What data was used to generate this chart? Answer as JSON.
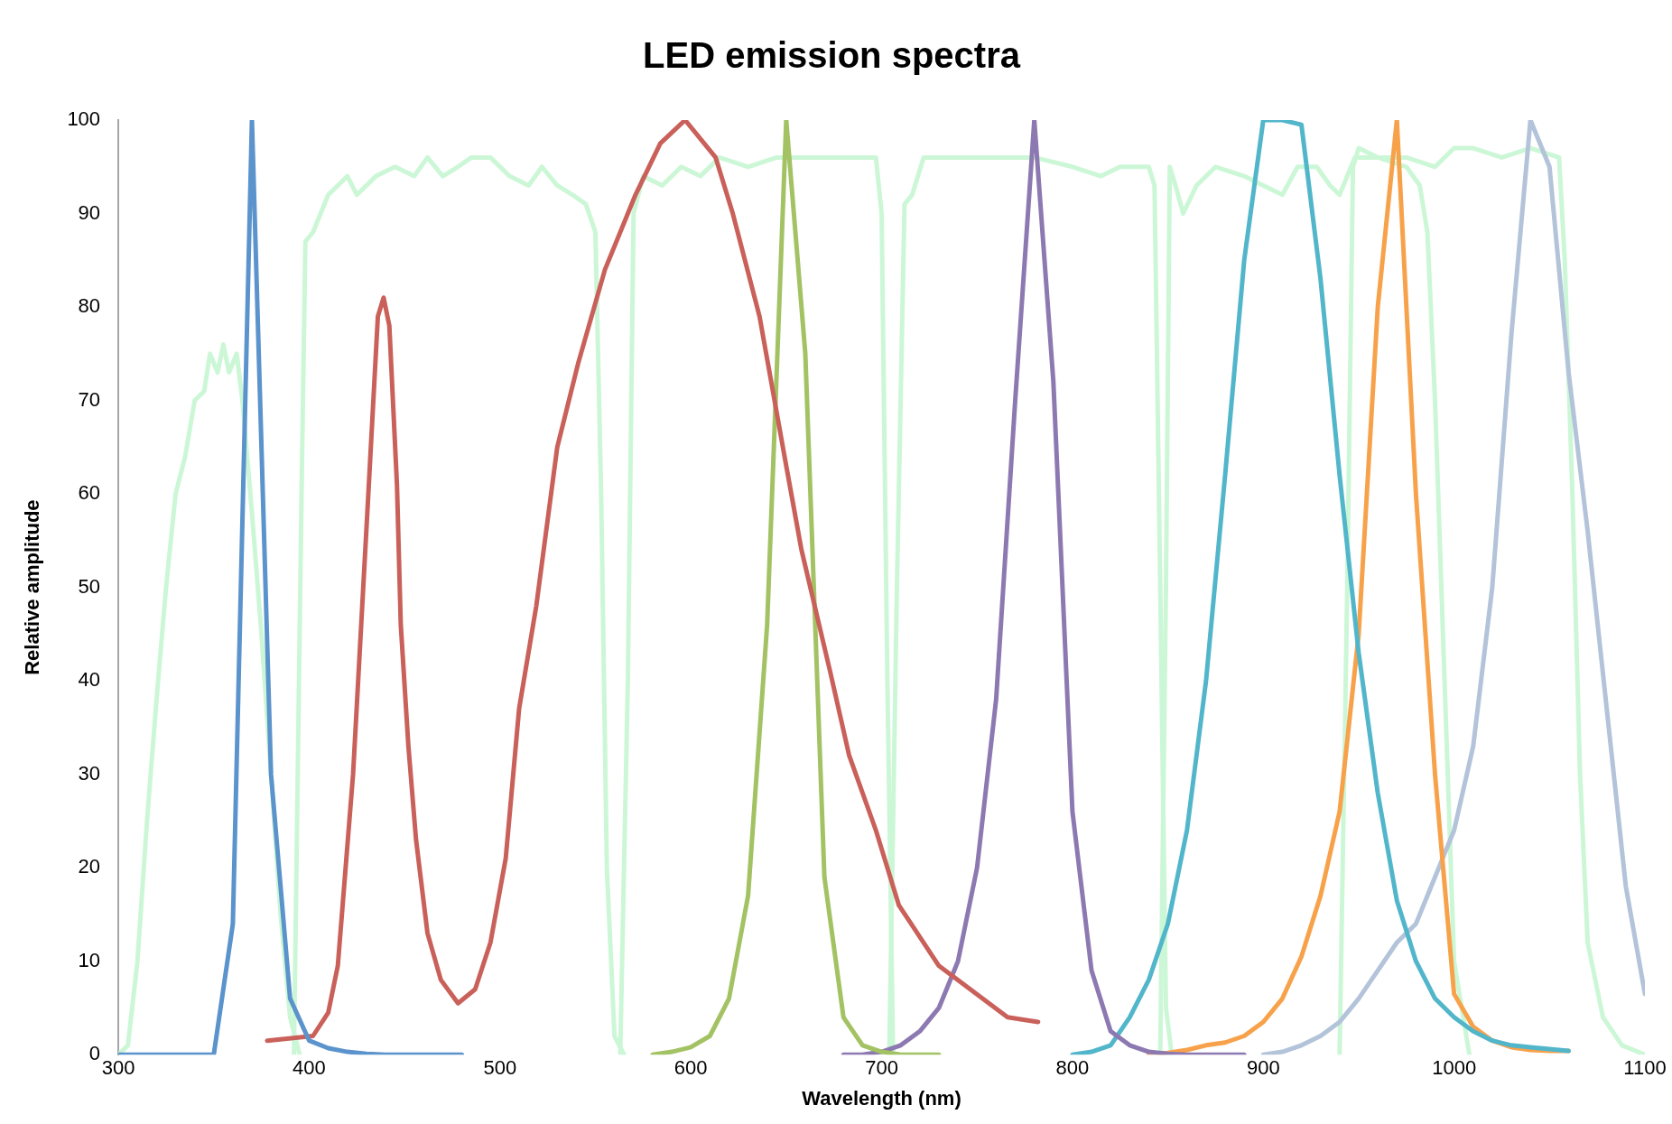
{
  "chart_data": {
    "type": "line",
    "title": "LED emission spectra",
    "xlabel": "Wavelength (nm)",
    "ylabel": "Relative amplitude",
    "xlim": [
      300,
      1100
    ],
    "xticks": [
      300,
      400,
      500,
      600,
      700,
      800,
      900,
      1000,
      1100
    ],
    "ylim": [
      0,
      100
    ],
    "yticks": [
      0,
      10,
      20,
      30,
      40,
      50,
      60,
      70,
      80,
      90,
      100
    ],
    "grid": false,
    "legend": false,
    "marker": "none",
    "line_style": "solid",
    "series": [
      {
        "color": "#5b93cc",
        "x": [
          300,
          310,
          320,
          330,
          340,
          350,
          360,
          370,
          380,
          390,
          400,
          410,
          420,
          430,
          440,
          450,
          460,
          470,
          480
        ],
        "values": [
          0,
          0,
          0,
          0,
          0,
          0,
          14,
          100,
          30,
          6,
          1.5,
          0.7,
          0.3,
          0.1,
          0,
          0,
          0,
          0,
          0
        ]
      },
      {
        "color": "#c9605a",
        "x": [
          378,
          402,
          410,
          415,
          423,
          431,
          436,
          439,
          442,
          446,
          448,
          452,
          456,
          462,
          469,
          478,
          487,
          495,
          503,
          510,
          519,
          530,
          541,
          555,
          571,
          584,
          597,
          613,
          622,
          636,
          650,
          658,
          673,
          683,
          697,
          709,
          730,
          766,
          782
        ],
        "values": [
          1.5,
          2,
          4.5,
          9.5,
          30,
          60,
          79,
          81,
          78,
          61,
          46,
          33,
          23,
          13,
          8,
          5.5,
          7,
          12,
          21,
          37,
          48,
          65,
          74,
          84,
          92,
          97.5,
          100,
          96,
          90,
          79,
          63,
          54,
          41,
          32,
          24,
          16,
          9.5,
          4,
          3.5
        ]
      },
      {
        "color": "#a3c263",
        "x": [
          580,
          590,
          600,
          610,
          620,
          630,
          640,
          650,
          660,
          670,
          680,
          690,
          700,
          710,
          720,
          730
        ],
        "values": [
          0,
          0.3,
          0.8,
          2,
          6,
          17,
          46,
          100,
          75,
          19,
          4,
          1,
          0.3,
          0,
          0,
          0
        ]
      },
      {
        "color": "#8d79b1",
        "x": [
          680,
          690,
          700,
          710,
          720,
          730,
          740,
          750,
          760,
          770,
          780,
          790,
          800,
          810,
          820,
          830,
          840,
          850,
          860,
          870,
          880,
          890
        ],
        "values": [
          0,
          0,
          0.3,
          1,
          2.5,
          5,
          10,
          20,
          38,
          70,
          100,
          72,
          26,
          9,
          2.5,
          1,
          0.3,
          0.1,
          0,
          0,
          0,
          0
        ]
      },
      {
        "color": "#52b6cb",
        "x": [
          800,
          810,
          820,
          830,
          840,
          850,
          860,
          870,
          880,
          890,
          900,
          910,
          920,
          930,
          940,
          950,
          960,
          970,
          980,
          990,
          1000,
          1010,
          1020,
          1030,
          1040,
          1050,
          1060
        ],
        "values": [
          0,
          0.3,
          1,
          4,
          8,
          14,
          24,
          40,
          62,
          85,
          100,
          100,
          99.5,
          83,
          62,
          43,
          28,
          16.5,
          10,
          6,
          4,
          2.5,
          1.5,
          1,
          0.8,
          0.6,
          0.4
        ]
      },
      {
        "color": "#f7a24b",
        "x": [
          840,
          850,
          860,
          870,
          880,
          890,
          900,
          910,
          920,
          930,
          940,
          950,
          960,
          970,
          980,
          990,
          1000,
          1010,
          1020,
          1030,
          1040,
          1050,
          1060
        ],
        "values": [
          0,
          0.2,
          0.5,
          1,
          1.3,
          2,
          3.5,
          6,
          10.5,
          17,
          26,
          45,
          80,
          100,
          60,
          30,
          6.5,
          3,
          1.5,
          0.8,
          0.5,
          0.4,
          0.4
        ]
      },
      {
        "color": "#b3c3d9",
        "x": [
          900,
          910,
          920,
          930,
          940,
          950,
          960,
          970,
          980,
          990,
          1000,
          1010,
          1020,
          1030,
          1040,
          1050,
          1060,
          1070,
          1080,
          1090,
          1100
        ],
        "values": [
          0,
          0.3,
          1,
          2,
          3.5,
          6,
          9,
          12,
          14,
          19,
          24,
          33,
          50,
          77,
          100,
          95,
          73,
          56,
          37,
          18,
          6.5
        ]
      },
      {
        "color": "#ccf7d6",
        "x": [
          300,
          305,
          310,
          315,
          320,
          325,
          330,
          335,
          340,
          345,
          348,
          352,
          355,
          358,
          362,
          365,
          370,
          375,
          380,
          385,
          390,
          395
        ],
        "values": [
          0,
          1,
          10,
          25,
          38,
          50,
          60,
          64,
          70,
          71,
          75,
          73,
          76,
          73,
          75,
          70,
          58,
          45,
          30,
          15,
          4,
          0
        ]
      },
      {
        "color": "#ccf7d6",
        "x": [
          392,
          396,
          398,
          402,
          406,
          410,
          415,
          420,
          425,
          435,
          445,
          455,
          462,
          470,
          478,
          485,
          495,
          505,
          515,
          522,
          530,
          538,
          545,
          550,
          553,
          556,
          560,
          565
        ],
        "values": [
          0,
          60,
          87,
          88,
          90,
          92,
          93,
          94,
          92,
          94,
          95,
          94,
          96,
          94,
          95,
          96,
          96,
          94,
          93,
          95,
          93,
          92,
          91,
          88,
          60,
          20,
          2,
          0
        ]
      },
      {
        "color": "#ccf7d6",
        "x": [
          563,
          567,
          570,
          575,
          585,
          595,
          605,
          615,
          630,
          645,
          660,
          680,
          697,
          700,
          703,
          706
        ],
        "values": [
          0,
          40,
          90,
          94,
          93,
          95,
          94,
          96,
          95,
          96,
          96,
          96,
          96,
          90,
          40,
          0
        ]
      },
      {
        "color": "#ccf7d6",
        "x": [
          704,
          708,
          712,
          716,
          722,
          740,
          760,
          780,
          800,
          815,
          825,
          840,
          843,
          846,
          849,
          852
        ],
        "values": [
          0,
          50,
          91,
          92,
          96,
          96,
          96,
          96,
          95,
          94,
          95,
          95,
          93,
          50,
          5,
          0
        ]
      },
      {
        "color": "#ccf7d6",
        "x": [
          846,
          849,
          851,
          854,
          858,
          865,
          875,
          890,
          900,
          910,
          918,
          928,
          935,
          940,
          948,
          960,
          975,
          982,
          986,
          990,
          995,
          1000,
          1008
        ],
        "values": [
          0,
          50,
          95,
          93,
          90,
          93,
          95,
          94,
          93,
          92,
          95,
          95,
          93,
          92,
          96,
          96,
          95,
          93,
          88,
          70,
          40,
          10,
          0
        ]
      },
      {
        "color": "#ccf7d6",
        "x": [
          940,
          944,
          947,
          950,
          960,
          975,
          990,
          1000,
          1010,
          1025,
          1040,
          1055,
          1058,
          1062,
          1066,
          1070,
          1078,
          1088,
          1100
        ],
        "values": [
          0,
          50,
          95,
          97,
          96,
          96,
          95,
          97,
          97,
          96,
          97,
          96,
          85,
          60,
          30,
          12,
          4,
          1,
          0
        ]
      }
    ]
  }
}
